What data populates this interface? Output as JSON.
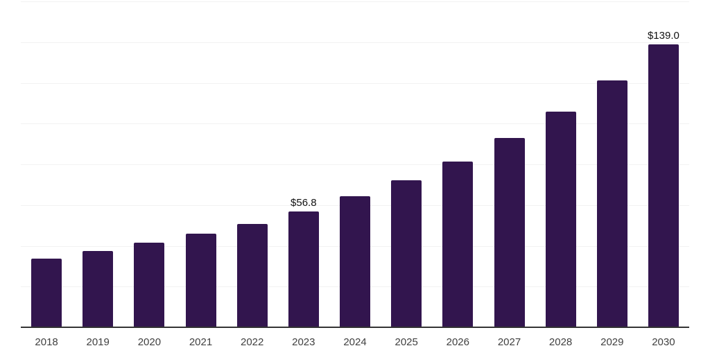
{
  "chart_data": {
    "type": "bar",
    "title": "",
    "xlabel": "",
    "ylabel": "",
    "categories": [
      "2018",
      "2019",
      "2020",
      "2021",
      "2022",
      "2023",
      "2024",
      "2025",
      "2026",
      "2027",
      "2028",
      "2029",
      "2030"
    ],
    "values": [
      33.8,
      37.5,
      41.6,
      46.0,
      50.7,
      56.8,
      64.3,
      72.1,
      81.5,
      93.0,
      106.0,
      121.2,
      139.0
    ],
    "data_labels": [
      {
        "category": "2023",
        "text": "$56.8"
      },
      {
        "category": "2030",
        "text": "$139.0"
      }
    ],
    "ylim": [
      0,
      160
    ],
    "gridline_step": 20,
    "grid": "horizontal-only",
    "legend": "none",
    "y_axis_labels": "none",
    "colors": {
      "bar": "#32154E",
      "axis": "#333333",
      "gridline": "#f2f2f2",
      "tick_label": "#404040",
      "data_label": "#111111",
      "background": "#ffffff"
    }
  }
}
